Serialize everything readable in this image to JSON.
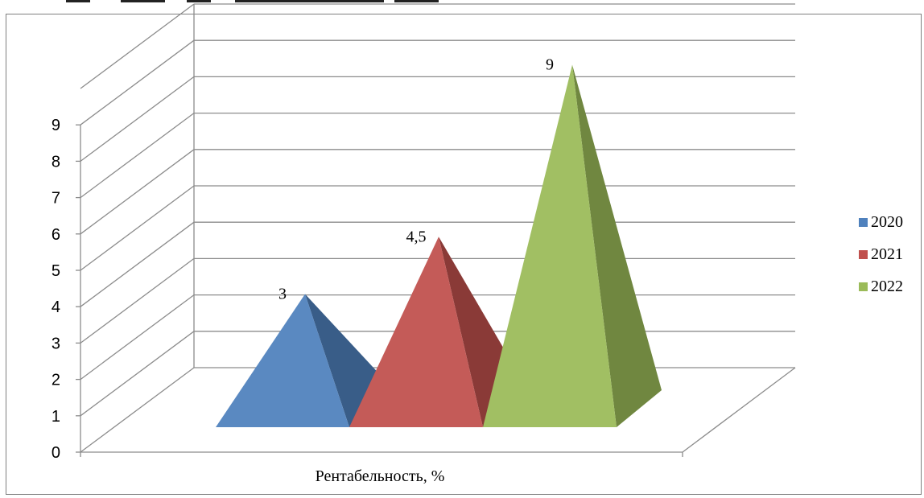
{
  "chart_data": {
    "type": "bar",
    "bar_shape": "pyramid",
    "three_d": true,
    "categories": [
      "Рентабельность, %"
    ],
    "xlabel": "Рентабельность, %",
    "ylim": [
      0,
      9
    ],
    "y_ticks": [
      "0",
      "1",
      "2",
      "3",
      "4",
      "5",
      "6",
      "7",
      "8",
      "9"
    ],
    "grid": true,
    "legend_position": "right",
    "series": [
      {
        "name": "2020",
        "values": [
          3
        ],
        "label": "3",
        "color": "#4f81bd"
      },
      {
        "name": "2021",
        "values": [
          4.5
        ],
        "label": "4,5",
        "color": "#c0504d"
      },
      {
        "name": "2022",
        "values": [
          9
        ],
        "label": "9",
        "color": "#9bbb59"
      }
    ]
  }
}
